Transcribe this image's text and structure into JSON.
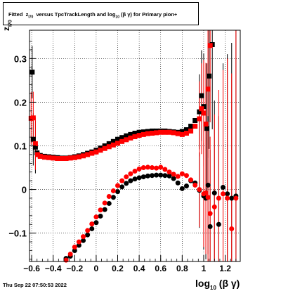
{
  "title": {
    "prefix": "Fitted",
    "z": "z",
    "z_sub": "I70",
    "middle": "versus TpcTrackLength and log",
    "log_sub": "10",
    "paren": "(β γ)",
    "suffix": "for Primary pion+"
  },
  "footer": "Thu Sep 22 07:50:53 2022",
  "xlabel": {
    "main": "log",
    "sub": "10",
    "rest": "(β γ)"
  },
  "ylabel": {
    "main": "z",
    "sub": "I70"
  },
  "chart_data": {
    "type": "scatter",
    "xlim": [
      -0.62,
      1.34
    ],
    "ylim": [
      -0.165,
      0.365
    ],
    "x_ticks": [
      "−0.6",
      "−0.4",
      "−0.2",
      "0",
      "0.2",
      "0.4",
      "0.6",
      "0.8",
      "1",
      "1.2"
    ],
    "x_tick_values": [
      -0.6,
      -0.4,
      -0.2,
      0,
      0.2,
      0.4,
      0.6,
      0.8,
      1.0,
      1.2
    ],
    "y_ticks": [
      "−0.1",
      "0",
      "0.1",
      "0.2",
      "0.3"
    ],
    "y_tick_values": [
      -0.1,
      0,
      0.1,
      0.2,
      0.3
    ],
    "grid": true,
    "series": [
      {
        "color": "#000000",
        "marker": "square",
        "points": [
          [
            -0.595,
            0.269
          ],
          [
            -0.585,
            0.115
          ],
          [
            -0.565,
            0.097
          ],
          [
            -0.55,
            0.084
          ],
          [
            -0.52,
            0.078
          ],
          [
            -0.48,
            0.076
          ],
          [
            -0.44,
            0.075
          ],
          [
            -0.4,
            0.074
          ],
          [
            -0.36,
            0.073
          ],
          [
            -0.32,
            0.072
          ],
          [
            -0.28,
            0.072
          ],
          [
            -0.24,
            0.073
          ],
          [
            -0.2,
            0.075
          ],
          [
            -0.16,
            0.077
          ],
          [
            -0.12,
            0.08
          ],
          [
            -0.08,
            0.083
          ],
          [
            -0.04,
            0.086
          ],
          [
            0.0,
            0.09
          ],
          [
            0.04,
            0.095
          ],
          [
            0.08,
            0.1
          ],
          [
            0.12,
            0.105
          ],
          [
            0.16,
            0.11
          ],
          [
            0.2,
            0.115
          ],
          [
            0.24,
            0.119
          ],
          [
            0.28,
            0.123
          ],
          [
            0.32,
            0.126
          ],
          [
            0.36,
            0.129
          ],
          [
            0.4,
            0.131
          ],
          [
            0.44,
            0.132
          ],
          [
            0.48,
            0.133
          ],
          [
            0.52,
            0.134
          ],
          [
            0.56,
            0.134
          ],
          [
            0.6,
            0.134
          ],
          [
            0.64,
            0.134
          ],
          [
            0.68,
            0.133
          ],
          [
            0.72,
            0.132
          ],
          [
            0.76,
            0.131
          ],
          [
            0.8,
            0.133
          ],
          [
            0.84,
            0.137
          ],
          [
            0.88,
            0.145
          ],
          [
            0.92,
            0.158
          ],
          [
            0.96,
            0.178
          ],
          [
            0.98,
            0.215
          ],
          [
            1.0,
            0.19
          ],
          [
            1.03,
            0.14
          ],
          [
            1.05,
            0.26
          ],
          [
            1.08,
            0.332
          ]
        ]
      },
      {
        "color": "#ff0000",
        "marker": "square",
        "points": [
          [
            -0.605,
            0.163
          ],
          [
            -0.585,
            0.164
          ],
          [
            -0.565,
            0.105
          ],
          [
            -0.545,
            0.08
          ],
          [
            -0.52,
            0.076
          ],
          [
            -0.48,
            0.074
          ],
          [
            -0.44,
            0.073
          ],
          [
            -0.4,
            0.072
          ],
          [
            -0.36,
            0.071
          ],
          [
            -0.32,
            0.071
          ],
          [
            -0.28,
            0.071
          ],
          [
            -0.24,
            0.072
          ],
          [
            -0.2,
            0.073
          ],
          [
            -0.16,
            0.075
          ],
          [
            -0.12,
            0.077
          ],
          [
            -0.08,
            0.08
          ],
          [
            -0.04,
            0.083
          ],
          [
            0.0,
            0.086
          ],
          [
            0.04,
            0.09
          ],
          [
            0.08,
            0.094
          ],
          [
            0.12,
            0.098
          ],
          [
            0.16,
            0.102
          ],
          [
            0.2,
            0.106
          ],
          [
            0.24,
            0.11
          ],
          [
            0.28,
            0.114
          ],
          [
            0.32,
            0.118
          ],
          [
            0.36,
            0.121
          ],
          [
            0.4,
            0.124
          ],
          [
            0.44,
            0.126
          ],
          [
            0.48,
            0.128
          ],
          [
            0.52,
            0.129
          ],
          [
            0.56,
            0.13
          ],
          [
            0.6,
            0.131
          ],
          [
            0.64,
            0.131
          ],
          [
            0.68,
            0.131
          ],
          [
            0.72,
            0.13
          ],
          [
            0.76,
            0.128
          ],
          [
            0.8,
            0.126
          ],
          [
            0.84,
            0.129
          ],
          [
            0.88,
            0.134
          ],
          [
            0.92,
            0.145
          ],
          [
            0.96,
            0.162
          ],
          [
            0.98,
            0.185
          ],
          [
            1.0,
            0.175
          ],
          [
            1.02,
            0.15
          ],
          [
            1.04,
            0.23
          ],
          [
            1.06,
            0.33
          ]
        ]
      },
      {
        "color": "#000000",
        "marker": "circle",
        "points": [
          [
            -0.28,
            -0.158
          ],
          [
            -0.24,
            -0.153
          ],
          [
            -0.2,
            -0.14
          ],
          [
            -0.16,
            -0.128
          ],
          [
            -0.12,
            -0.117
          ],
          [
            -0.08,
            -0.104
          ],
          [
            -0.04,
            -0.09
          ],
          [
            0.0,
            -0.076
          ],
          [
            0.04,
            -0.061
          ],
          [
            0.08,
            -0.046
          ],
          [
            0.12,
            -0.032
          ],
          [
            0.16,
            -0.018
          ],
          [
            0.2,
            -0.005
          ],
          [
            0.24,
            0.006
          ],
          [
            0.28,
            0.014
          ],
          [
            0.32,
            0.02
          ],
          [
            0.36,
            0.024
          ],
          [
            0.4,
            0.027
          ],
          [
            0.44,
            0.029
          ],
          [
            0.48,
            0.031
          ],
          [
            0.52,
            0.032
          ],
          [
            0.56,
            0.033
          ],
          [
            0.6,
            0.033
          ],
          [
            0.64,
            0.032
          ],
          [
            0.68,
            0.031
          ],
          [
            0.72,
            0.025
          ],
          [
            0.76,
            0.015
          ],
          [
            0.8,
            0.002
          ],
          [
            0.84,
            0.008
          ],
          [
            0.88,
            0.02
          ],
          [
            0.92,
            0.015
          ],
          [
            0.96,
            -0.002
          ],
          [
            1.0,
            -0.015
          ],
          [
            1.02,
            -0.02
          ],
          [
            1.04,
            0.01
          ],
          [
            1.06,
            -0.085
          ],
          [
            1.1,
            -0.008
          ],
          [
            1.14,
            -0.08
          ],
          [
            1.18,
            0.005
          ],
          [
            1.22,
            -0.01
          ],
          [
            1.26,
            -0.02
          ],
          [
            1.3,
            -0.015
          ]
        ]
      },
      {
        "color": "#ff0000",
        "marker": "circle",
        "points": [
          [
            -0.28,
            -0.162
          ],
          [
            -0.24,
            -0.148
          ],
          [
            -0.2,
            -0.132
          ],
          [
            -0.16,
            -0.12
          ],
          [
            -0.12,
            -0.108
          ],
          [
            -0.08,
            -0.094
          ],
          [
            -0.04,
            -0.079
          ],
          [
            0.0,
            -0.063
          ],
          [
            0.04,
            -0.047
          ],
          [
            0.08,
            -0.031
          ],
          [
            0.12,
            -0.016
          ],
          [
            0.16,
            -0.003
          ],
          [
            0.2,
            0.009
          ],
          [
            0.24,
            0.02
          ],
          [
            0.28,
            0.029
          ],
          [
            0.32,
            0.036
          ],
          [
            0.36,
            0.042
          ],
          [
            0.4,
            0.047
          ],
          [
            0.44,
            0.05
          ],
          [
            0.48,
            0.051
          ],
          [
            0.52,
            0.05
          ],
          [
            0.56,
            0.049
          ],
          [
            0.6,
            0.051
          ],
          [
            0.64,
            0.046
          ],
          [
            0.68,
            0.04
          ],
          [
            0.72,
            0.035
          ],
          [
            0.76,
            0.03
          ],
          [
            0.8,
            0.036
          ],
          [
            0.84,
            0.032
          ],
          [
            0.88,
            0.022
          ],
          [
            0.92,
            0.01
          ],
          [
            0.96,
            0.0
          ],
          [
            1.0,
            -0.01
          ],
          [
            1.02,
            -0.008
          ],
          [
            1.04,
            -0.018
          ],
          [
            1.06,
            -0.055
          ],
          [
            1.1,
            -0.04
          ],
          [
            1.14,
            -0.02
          ],
          [
            1.18,
            -0.01
          ],
          [
            1.22,
            -0.02
          ],
          [
            1.26,
            -0.09
          ],
          [
            1.3,
            -0.02
          ]
        ]
      }
    ]
  }
}
